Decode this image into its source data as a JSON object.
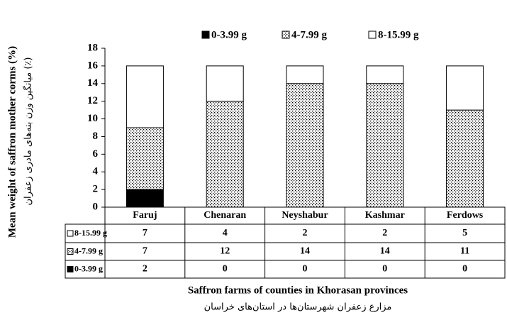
{
  "chart_data": {
    "type": "stacked-bar",
    "y_label": "Mean weight of saffron mother corms (%)",
    "y_label_secondary": "میانگین وزن بنه‌های مادری زعفران (٪)",
    "x_label": "Saffron farms of counties in Khorasan provinces",
    "x_label_secondary": "مزارع زعفران شهرستان‌ها در استان‌های خراسان",
    "categories": [
      "Faruj",
      "Chenaran",
      "Neyshabur",
      "Kashmar",
      "Ferdows"
    ],
    "series": [
      {
        "name": "0-3.99 g",
        "color": "#000000",
        "values": [
          2,
          0,
          0,
          0,
          0
        ]
      },
      {
        "name": "4-7.99 g",
        "color": "#ffffff",
        "pattern": "dots",
        "values": [
          7,
          12,
          14,
          14,
          11
        ]
      },
      {
        "name": "8-15.99 g",
        "color": "#ffffff",
        "values": [
          7,
          4,
          2,
          2,
          5
        ]
      }
    ],
    "ylim": [
      0,
      18
    ],
    "yticks": [
      0,
      2,
      4,
      6,
      8,
      10,
      12,
      14,
      16,
      18
    ],
    "legend": "top",
    "data_table": true
  }
}
